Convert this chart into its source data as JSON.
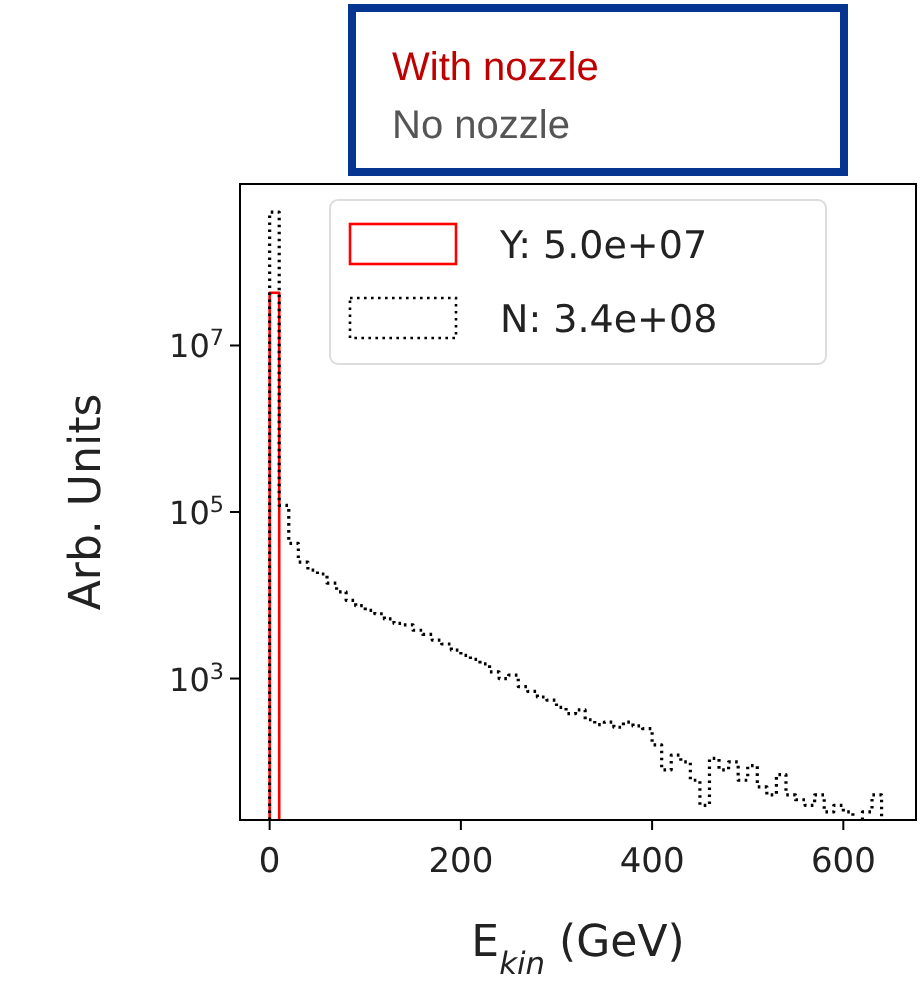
{
  "chart_data": {
    "type": "histogram",
    "xlabel": "E$_{kin}$ (GeV)",
    "ylabel": "Arb. Units",
    "log": "y",
    "xlim": [
      -31,
      676
    ],
    "ylim": [
      20,
      870000000
    ],
    "xticks": [
      0,
      200,
      400,
      600
    ],
    "yticks": [
      {
        "value": 1000,
        "label": "10$^{3}$"
      },
      {
        "value": 100000,
        "label": "10$^{5}$"
      },
      {
        "value": 10000000,
        "label": "10$^{7}$"
      }
    ],
    "bins": [
      0,
      10,
      20,
      30,
      40,
      50,
      60,
      70,
      80,
      90,
      100,
      110,
      120,
      130,
      140,
      150,
      160,
      170,
      180,
      190,
      200,
      210,
      220,
      230,
      240,
      250,
      260,
      270,
      280,
      290,
      300,
      310,
      320,
      330,
      340,
      350,
      360,
      370,
      380,
      390,
      400,
      410,
      420,
      430,
      440,
      450,
      460,
      470,
      480,
      490,
      500,
      510,
      520,
      530,
      540,
      550,
      560,
      570,
      580,
      590,
      600,
      610,
      620,
      630,
      640
    ],
    "series": [
      {
        "name": "Y: 5.0e+07",
        "color": "#ff0000",
        "line_style": "solid",
        "bins": [
          0,
          10
        ],
        "values": [
          43000000
        ]
      },
      {
        "name": "N: 3.4e+08",
        "color": "#000000",
        "line_style": "dotted",
        "values": [
          400000000,
          120000,
          42000,
          25000,
          20000,
          18000,
          14000,
          11000,
          8700,
          7500,
          6600,
          6000,
          5200,
          4600,
          4400,
          3800,
          3400,
          2900,
          2600,
          2200,
          1900,
          1700,
          1500,
          1200,
          1000,
          1100,
          800,
          700,
          600,
          550,
          450,
          380,
          420,
          320,
          280,
          300,
          260,
          300,
          270,
          250,
          160,
          80,
          120,
          100,
          60,
          30,
          110,
          80,
          100,
          60,
          90,
          50,
          40,
          70,
          40,
          35,
          30,
          40,
          25,
          30,
          25,
          null,
          25,
          40
        ]
      }
    ],
    "legend": "top",
    "annotations": [
      "With nozzle",
      "No nozzle"
    ]
  }
}
